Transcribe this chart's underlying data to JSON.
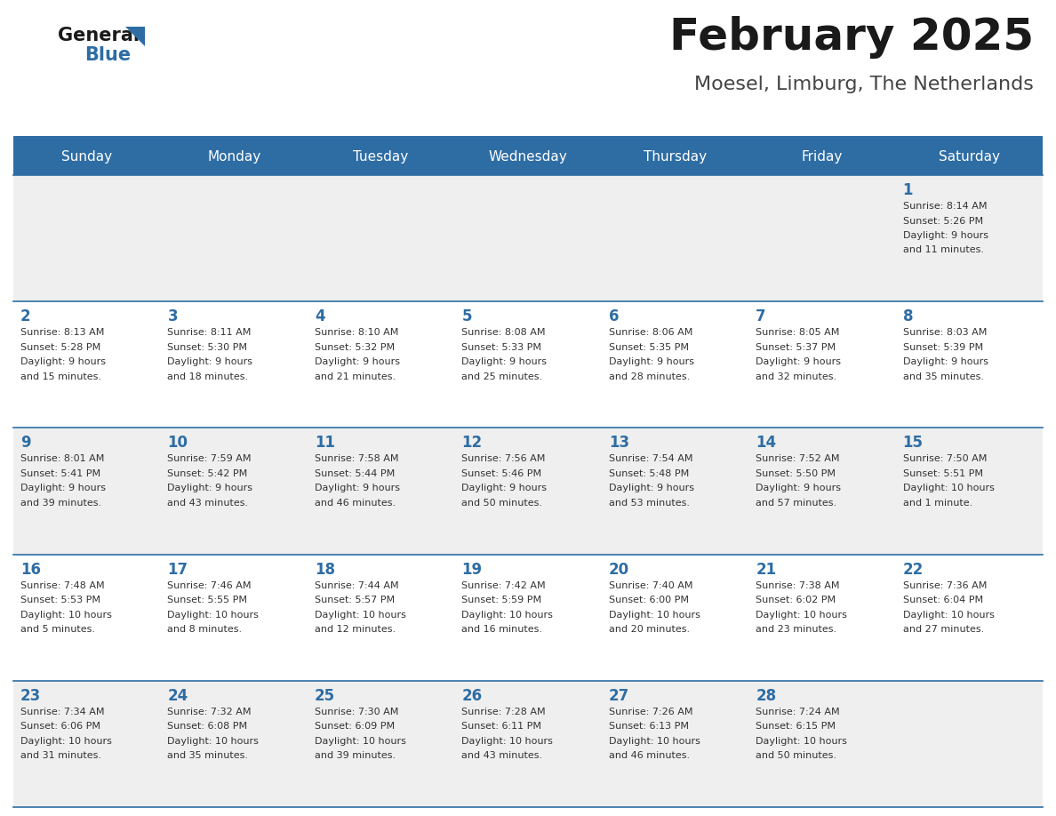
{
  "title": "February 2025",
  "subtitle": "Moesel, Limburg, The Netherlands",
  "header_color": "#2E6DA4",
  "header_text_color": "#FFFFFF",
  "day_names": [
    "Sunday",
    "Monday",
    "Tuesday",
    "Wednesday",
    "Thursday",
    "Friday",
    "Saturday"
  ],
  "background_color": "#FFFFFF",
  "cell_bg_even": "#EFEFEF",
  "cell_bg_odd": "#FFFFFF",
  "border_color": "#2E6DA4",
  "day_number_color": "#2E6DA4",
  "text_color": "#333333",
  "title_color": "#1a1a1a",
  "subtitle_color": "#444444",
  "logo_general_color": "#1a1a1a",
  "logo_blue_color": "#2E6DA4",
  "logo_triangle_color": "#2E6DA4",
  "weeks": [
    [
      {
        "day": "",
        "sunrise": "",
        "sunset": "",
        "daylight": ""
      },
      {
        "day": "",
        "sunrise": "",
        "sunset": "",
        "daylight": ""
      },
      {
        "day": "",
        "sunrise": "",
        "sunset": "",
        "daylight": ""
      },
      {
        "day": "",
        "sunrise": "",
        "sunset": "",
        "daylight": ""
      },
      {
        "day": "",
        "sunrise": "",
        "sunset": "",
        "daylight": ""
      },
      {
        "day": "",
        "sunrise": "",
        "sunset": "",
        "daylight": ""
      },
      {
        "day": "1",
        "sunrise": "8:14 AM",
        "sunset": "5:26 PM",
        "daylight": "9 hours\nand 11 minutes."
      }
    ],
    [
      {
        "day": "2",
        "sunrise": "8:13 AM",
        "sunset": "5:28 PM",
        "daylight": "9 hours\nand 15 minutes."
      },
      {
        "day": "3",
        "sunrise": "8:11 AM",
        "sunset": "5:30 PM",
        "daylight": "9 hours\nand 18 minutes."
      },
      {
        "day": "4",
        "sunrise": "8:10 AM",
        "sunset": "5:32 PM",
        "daylight": "9 hours\nand 21 minutes."
      },
      {
        "day": "5",
        "sunrise": "8:08 AM",
        "sunset": "5:33 PM",
        "daylight": "9 hours\nand 25 minutes."
      },
      {
        "day": "6",
        "sunrise": "8:06 AM",
        "sunset": "5:35 PM",
        "daylight": "9 hours\nand 28 minutes."
      },
      {
        "day": "7",
        "sunrise": "8:05 AM",
        "sunset": "5:37 PM",
        "daylight": "9 hours\nand 32 minutes."
      },
      {
        "day": "8",
        "sunrise": "8:03 AM",
        "sunset": "5:39 PM",
        "daylight": "9 hours\nand 35 minutes."
      }
    ],
    [
      {
        "day": "9",
        "sunrise": "8:01 AM",
        "sunset": "5:41 PM",
        "daylight": "9 hours\nand 39 minutes."
      },
      {
        "day": "10",
        "sunrise": "7:59 AM",
        "sunset": "5:42 PM",
        "daylight": "9 hours\nand 43 minutes."
      },
      {
        "day": "11",
        "sunrise": "7:58 AM",
        "sunset": "5:44 PM",
        "daylight": "9 hours\nand 46 minutes."
      },
      {
        "day": "12",
        "sunrise": "7:56 AM",
        "sunset": "5:46 PM",
        "daylight": "9 hours\nand 50 minutes."
      },
      {
        "day": "13",
        "sunrise": "7:54 AM",
        "sunset": "5:48 PM",
        "daylight": "9 hours\nand 53 minutes."
      },
      {
        "day": "14",
        "sunrise": "7:52 AM",
        "sunset": "5:50 PM",
        "daylight": "9 hours\nand 57 minutes."
      },
      {
        "day": "15",
        "sunrise": "7:50 AM",
        "sunset": "5:51 PM",
        "daylight": "10 hours\nand 1 minute."
      }
    ],
    [
      {
        "day": "16",
        "sunrise": "7:48 AM",
        "sunset": "5:53 PM",
        "daylight": "10 hours\nand 5 minutes."
      },
      {
        "day": "17",
        "sunrise": "7:46 AM",
        "sunset": "5:55 PM",
        "daylight": "10 hours\nand 8 minutes."
      },
      {
        "day": "18",
        "sunrise": "7:44 AM",
        "sunset": "5:57 PM",
        "daylight": "10 hours\nand 12 minutes."
      },
      {
        "day": "19",
        "sunrise": "7:42 AM",
        "sunset": "5:59 PM",
        "daylight": "10 hours\nand 16 minutes."
      },
      {
        "day": "20",
        "sunrise": "7:40 AM",
        "sunset": "6:00 PM",
        "daylight": "10 hours\nand 20 minutes."
      },
      {
        "day": "21",
        "sunrise": "7:38 AM",
        "sunset": "6:02 PM",
        "daylight": "10 hours\nand 23 minutes."
      },
      {
        "day": "22",
        "sunrise": "7:36 AM",
        "sunset": "6:04 PM",
        "daylight": "10 hours\nand 27 minutes."
      }
    ],
    [
      {
        "day": "23",
        "sunrise": "7:34 AM",
        "sunset": "6:06 PM",
        "daylight": "10 hours\nand 31 minutes."
      },
      {
        "day": "24",
        "sunrise": "7:32 AM",
        "sunset": "6:08 PM",
        "daylight": "10 hours\nand 35 minutes."
      },
      {
        "day": "25",
        "sunrise": "7:30 AM",
        "sunset": "6:09 PM",
        "daylight": "10 hours\nand 39 minutes."
      },
      {
        "day": "26",
        "sunrise": "7:28 AM",
        "sunset": "6:11 PM",
        "daylight": "10 hours\nand 43 minutes."
      },
      {
        "day": "27",
        "sunrise": "7:26 AM",
        "sunset": "6:13 PM",
        "daylight": "10 hours\nand 46 minutes."
      },
      {
        "day": "28",
        "sunrise": "7:24 AM",
        "sunset": "6:15 PM",
        "daylight": "10 hours\nand 50 minutes."
      },
      {
        "day": "",
        "sunrise": "",
        "sunset": "",
        "daylight": ""
      }
    ]
  ]
}
